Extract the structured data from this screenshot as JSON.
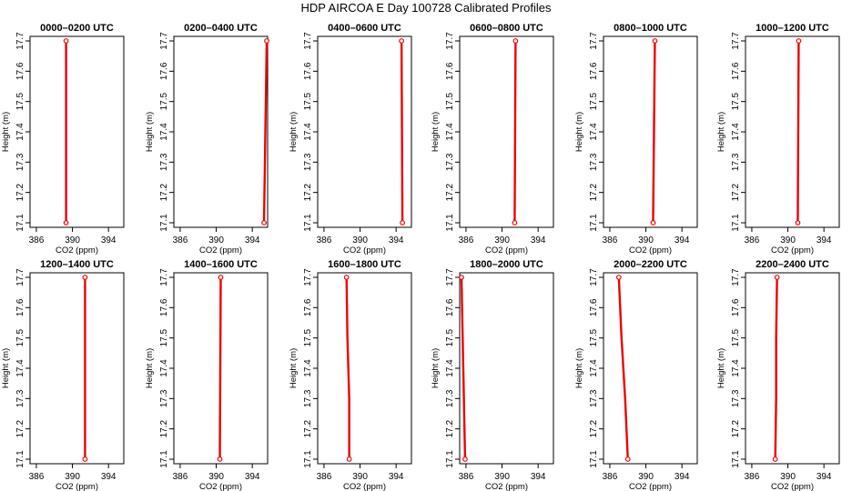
{
  "title": "HDP AIRCOA E  Day 100728  Calibrated Profiles",
  "colors": {
    "series": "#ee0000",
    "axis": "#000000"
  },
  "chart_data": [
    {
      "type": "line",
      "title": "0000–0200 UTC",
      "xlabel": "CO2 (ppm)",
      "ylabel": "Height (m)",
      "xlim": [
        385.3,
        395.7
      ],
      "ylim": [
        17.085,
        17.715
      ],
      "xticks": [
        "386",
        "390",
        "394"
      ],
      "yticks": [
        "17.1",
        "17.2",
        "17.3",
        "17.4",
        "17.5",
        "17.6",
        "17.7"
      ],
      "series": [
        {
          "x": [
            389.3,
            389.3
          ],
          "y": [
            17.1,
            17.7
          ]
        }
      ]
    },
    {
      "type": "line",
      "title": "0200–0400 UTC",
      "xlabel": "CO2 (ppm)",
      "ylabel": "Height (m)",
      "xlim": [
        385.3,
        395.7
      ],
      "ylim": [
        17.085,
        17.715
      ],
      "xticks": [
        "386",
        "390",
        "394"
      ],
      "yticks": [
        "17.1",
        "17.2",
        "17.3",
        "17.4",
        "17.5",
        "17.6",
        "17.7"
      ],
      "series": [
        {
          "x": [
            395.3,
            395.6
          ],
          "y": [
            17.1,
            17.7
          ]
        }
      ]
    },
    {
      "type": "line",
      "title": "0400–0600 UTC",
      "xlabel": "CO2 (ppm)",
      "ylabel": "Height (m)",
      "xlim": [
        385.3,
        395.7
      ],
      "ylim": [
        17.085,
        17.715
      ],
      "xticks": [
        "386",
        "390",
        "394"
      ],
      "yticks": [
        "17.1",
        "17.2",
        "17.3",
        "17.4",
        "17.5",
        "17.6",
        "17.7"
      ],
      "series": [
        {
          "x": [
            394.7,
            394.6
          ],
          "y": [
            17.1,
            17.7
          ]
        }
      ]
    },
    {
      "type": "line",
      "title": "0600–0800 UTC",
      "xlabel": "CO2 (ppm)",
      "ylabel": "Height (m)",
      "xlim": [
        385.3,
        395.7
      ],
      "ylim": [
        17.085,
        17.715
      ],
      "xticks": [
        "386",
        "390",
        "394"
      ],
      "yticks": [
        "17.1",
        "17.2",
        "17.3",
        "17.4",
        "17.5",
        "17.6",
        "17.7"
      ],
      "series": [
        {
          "x": [
            391.4,
            391.5
          ],
          "y": [
            17.1,
            17.7
          ]
        }
      ]
    },
    {
      "type": "line",
      "title": "0800–1000 UTC",
      "xlabel": "CO2 (ppm)",
      "ylabel": "Height (m)",
      "xlim": [
        385.3,
        395.7
      ],
      "ylim": [
        17.085,
        17.715
      ],
      "xticks": [
        "386",
        "390",
        "394"
      ],
      "yticks": [
        "17.1",
        "17.2",
        "17.3",
        "17.4",
        "17.5",
        "17.6",
        "17.7"
      ],
      "series": [
        {
          "x": [
            390.8,
            391.0
          ],
          "y": [
            17.1,
            17.7
          ]
        }
      ]
    },
    {
      "type": "line",
      "title": "1000–1200 UTC",
      "xlabel": "CO2 (ppm)",
      "ylabel": "Height (m)",
      "xlim": [
        385.3,
        395.7
      ],
      "ylim": [
        17.085,
        17.715
      ],
      "xticks": [
        "386",
        "390",
        "394"
      ],
      "yticks": [
        "17.1",
        "17.2",
        "17.3",
        "17.4",
        "17.5",
        "17.6",
        "17.7"
      ],
      "series": [
        {
          "x": [
            391.1,
            391.2
          ],
          "y": [
            17.1,
            17.7
          ]
        }
      ]
    },
    {
      "type": "line",
      "title": "1200–1400 UTC",
      "xlabel": "CO2 (ppm)",
      "ylabel": "Height (m)",
      "xlim": [
        385.3,
        395.7
      ],
      "ylim": [
        17.085,
        17.715
      ],
      "xticks": [
        "386",
        "390",
        "394"
      ],
      "yticks": [
        "17.1",
        "17.2",
        "17.3",
        "17.4",
        "17.5",
        "17.6",
        "17.7"
      ],
      "series": [
        {
          "x": [
            391.4,
            391.4
          ],
          "y": [
            17.1,
            17.7
          ]
        }
      ]
    },
    {
      "type": "line",
      "title": "1400–1600 UTC",
      "xlabel": "CO2 (ppm)",
      "ylabel": "Height (m)",
      "xlim": [
        385.3,
        395.7
      ],
      "ylim": [
        17.085,
        17.715
      ],
      "xticks": [
        "386",
        "390",
        "394"
      ],
      "yticks": [
        "17.1",
        "17.2",
        "17.3",
        "17.4",
        "17.5",
        "17.6",
        "17.7"
      ],
      "series": [
        {
          "x": [
            390.4,
            390.5
          ],
          "y": [
            17.1,
            17.7
          ]
        }
      ]
    },
    {
      "type": "line",
      "title": "1600–1800 UTC",
      "xlabel": "CO2 (ppm)",
      "ylabel": "Height (m)",
      "xlim": [
        385.3,
        395.7
      ],
      "ylim": [
        17.085,
        17.715
      ],
      "xticks": [
        "386",
        "390",
        "394"
      ],
      "yticks": [
        "17.1",
        "17.2",
        "17.3",
        "17.4",
        "17.5",
        "17.6",
        "17.7"
      ],
      "series": [
        {
          "x": [
            388.8,
            388.8,
            388.6,
            388.5
          ],
          "y": [
            17.1,
            17.3,
            17.5,
            17.7
          ]
        }
      ]
    },
    {
      "type": "line",
      "title": "1800–2000 UTC",
      "xlabel": "CO2 (ppm)",
      "ylabel": "Height (m)",
      "xlim": [
        385.3,
        395.7
      ],
      "ylim": [
        17.085,
        17.715
      ],
      "xticks": [
        "386",
        "390",
        "394"
      ],
      "yticks": [
        "17.1",
        "17.2",
        "17.3",
        "17.4",
        "17.5",
        "17.6",
        "17.7"
      ],
      "series": [
        {
          "x": [
            385.9,
            385.7,
            385.5
          ],
          "y": [
            17.1,
            17.4,
            17.7
          ]
        }
      ]
    },
    {
      "type": "line",
      "title": "2000–2200 UTC",
      "xlabel": "CO2 (ppm)",
      "ylabel": "Height (m)",
      "xlim": [
        385.3,
        395.7
      ],
      "ylim": [
        17.085,
        17.715
      ],
      "xticks": [
        "386",
        "390",
        "394"
      ],
      "yticks": [
        "17.1",
        "17.2",
        "17.3",
        "17.4",
        "17.5",
        "17.6",
        "17.7"
      ],
      "series": [
        {
          "x": [
            388.0,
            387.7,
            387.3,
            387.0
          ],
          "y": [
            17.1,
            17.3,
            17.5,
            17.7
          ]
        }
      ]
    },
    {
      "type": "line",
      "title": "2200–2400 UTC",
      "xlabel": "CO2 (ppm)",
      "ylabel": "Height (m)",
      "xlim": [
        385.3,
        395.7
      ],
      "ylim": [
        17.085,
        17.715
      ],
      "xticks": [
        "386",
        "390",
        "394"
      ],
      "yticks": [
        "17.1",
        "17.2",
        "17.3",
        "17.4",
        "17.5",
        "17.6",
        "17.7"
      ],
      "series": [
        {
          "x": [
            388.6,
            388.7,
            388.7,
            388.8
          ],
          "y": [
            17.1,
            17.3,
            17.5,
            17.7
          ]
        }
      ]
    }
  ]
}
